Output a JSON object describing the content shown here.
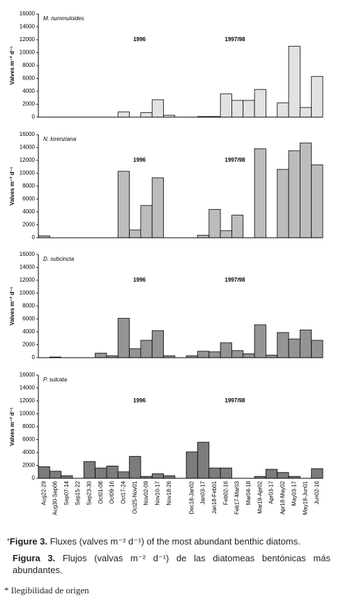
{
  "chart_data": [
    {
      "type": "bar",
      "label": "M. nummuloides",
      "ylabel": "Valves m⁻² d⁻¹",
      "annotations": [
        "1996",
        "1997/98"
      ],
      "color": "#e2e2e2",
      "ylim": [
        0,
        16000
      ],
      "yticks": [
        0,
        2000,
        4000,
        6000,
        8000,
        10000,
        12000,
        14000,
        16000
      ],
      "values": [
        0,
        0,
        0,
        0,
        0,
        0,
        0,
        800,
        0,
        700,
        2700,
        300,
        null,
        0,
        100,
        100,
        3600,
        2600,
        2600,
        4300,
        0,
        2200,
        11000,
        1500,
        6300
      ]
    },
    {
      "type": "bar",
      "label": "N. lorenziana",
      "ylabel": "Valves m⁻² d⁻¹",
      "annotations": [
        "1996",
        "1997/98"
      ],
      "color": "#bcbcbc",
      "ylim": [
        0,
        16000
      ],
      "yticks": [
        0,
        2000,
        4000,
        6000,
        8000,
        10000,
        12000,
        14000,
        16000
      ],
      "values": [
        300,
        0,
        0,
        0,
        0,
        0,
        0,
        10300,
        1200,
        5000,
        9300,
        0,
        null,
        0,
        400,
        4400,
        1100,
        3500,
        0,
        13800,
        0,
        10600,
        13500,
        14700,
        11300
      ]
    },
    {
      "type": "bar",
      "label": "D. subcincta",
      "ylabel": "Valves m⁻² d⁻¹",
      "annotations": [
        "1996",
        "1997/98"
      ],
      "color": "#949494",
      "ylim": [
        0,
        16000
      ],
      "yticks": [
        0,
        2000,
        4000,
        6000,
        8000,
        10000,
        12000,
        14000,
        16000
      ],
      "values": [
        0,
        100,
        0,
        0,
        0,
        700,
        300,
        6100,
        1400,
        2700,
        4200,
        300,
        null,
        300,
        1000,
        900,
        2300,
        1100,
        600,
        5100,
        400,
        3900,
        2900,
        4300,
        2700
      ]
    },
    {
      "type": "bar",
      "label": "P. sulcata",
      "ylabel": "Valves m⁻² d⁻¹",
      "annotations": [
        "1996",
        "1997/98"
      ],
      "color": "#7c7c7c",
      "ylim": [
        0,
        16000
      ],
      "yticks": [
        0,
        2000,
        4000,
        6000,
        8000,
        10000,
        12000,
        14000,
        16000
      ],
      "values": [
        1800,
        1100,
        400,
        0,
        2600,
        1600,
        1900,
        1000,
        3400,
        300,
        700,
        400,
        null,
        4100,
        5600,
        1600,
        1600,
        0,
        0,
        300,
        1400,
        900,
        300,
        0,
        1500
      ],
      "categories": [
        "Aug22-29",
        "Aug30-Sep06",
        "Sep07-14",
        "Sep15-22",
        "Sep23-30",
        "Oct01-08",
        "Oct09-16",
        "Oct17-24",
        "Oct25-Nov01",
        "Nov02-09",
        "Nov10-17",
        "Nov18-26",
        null,
        "Dec18-Jan02",
        "Jan03-17",
        "Jan18-Feb01",
        "Feb02-16",
        "Feb17-Mar03",
        "Mar04-18",
        "Mar19-Apr02",
        "Apr03-17",
        "Apr18-May02",
        "May03-17",
        "May18-Jun01",
        "Jun02-16"
      ]
    }
  ],
  "caption": {
    "marker": "*",
    "en_label": "Figure 3.",
    "en_text": "Fluxes (valves m⁻² d⁻¹) of the most abundant benthic diatoms.",
    "es_label": "Figura 3.",
    "es_text": "Flujos (valvas m⁻² d⁻¹) de las diatomeas bentónicas más abundantes."
  },
  "footnote": "* Ilegibilidad de origen"
}
